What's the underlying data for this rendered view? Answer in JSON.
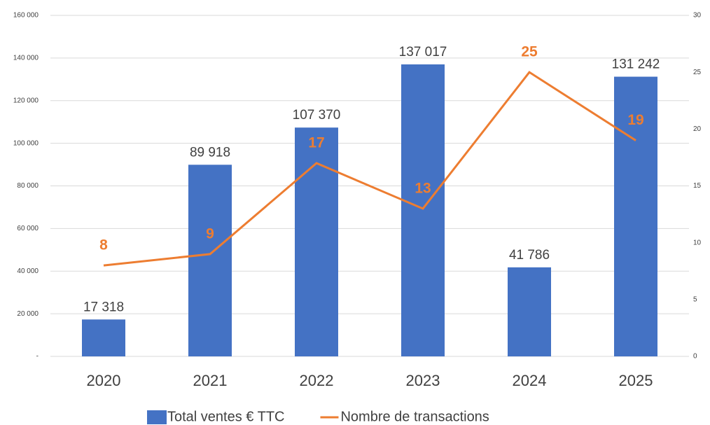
{
  "chart_data": {
    "type": "bar",
    "categories": [
      "2020",
      "2021",
      "2022",
      "2023",
      "2024",
      "2025"
    ],
    "series": [
      {
        "name": "Total ventes € TTC",
        "type": "bar",
        "color": "#4472c4",
        "values": [
          17318,
          89918,
          107370,
          137017,
          41786,
          131242
        ],
        "value_labels": [
          "17 318",
          "89 918",
          "107 370",
          "137 017",
          "41 786",
          "131 242"
        ]
      },
      {
        "name": "Nombre de transactions",
        "type": "line",
        "axis": "y2",
        "color": "#ed7d31",
        "values": [
          8,
          9,
          17,
          13,
          25,
          19
        ]
      }
    ],
    "ylim": [
      0,
      160000
    ],
    "yticks": [
      {
        "value": 0,
        "label": "-"
      },
      {
        "value": 20000,
        "label": "20 000"
      },
      {
        "value": 40000,
        "label": "40 000"
      },
      {
        "value": 60000,
        "label": "60 000"
      },
      {
        "value": 80000,
        "label": "80 000"
      },
      {
        "value": 100000,
        "label": "100 000"
      },
      {
        "value": 120000,
        "label": "120 000"
      },
      {
        "value": 140000,
        "label": "140 000"
      },
      {
        "value": 160000,
        "label": "160 000"
      }
    ],
    "y2lim": [
      0,
      30
    ],
    "y2ticks": [
      0,
      5,
      10,
      15,
      20,
      25,
      30
    ],
    "grid": true,
    "legend": "bottom"
  }
}
